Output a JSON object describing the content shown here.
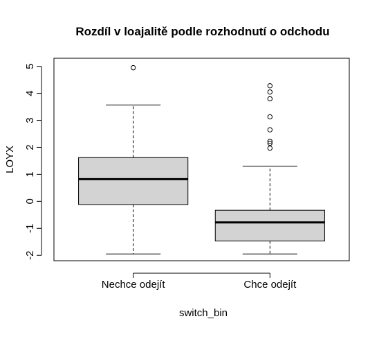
{
  "chart_data": {
    "type": "boxplot",
    "title": "Rozdíl v loajalitě podle rozhodnutí o odchodu",
    "xlabel": "switch_bin",
    "ylabel": "LOYX",
    "ylim": [
      -2.2,
      5.3
    ],
    "yticks": [
      -2,
      -1,
      0,
      1,
      2,
      3,
      4,
      5
    ],
    "categories": [
      "Nechce odejít",
      "Chce odejít"
    ],
    "boxes": [
      {
        "category": "Nechce odejít",
        "whisker_low": -1.95,
        "q1": -0.12,
        "median": 0.82,
        "q3": 1.62,
        "whisker_high": 3.57,
        "outliers": [
          4.95
        ]
      },
      {
        "category": "Chce odejít",
        "whisker_low": -1.95,
        "q1": -1.47,
        "median": -0.78,
        "q3": -0.33,
        "whisker_high": 1.3,
        "outliers": [
          1.97,
          2.15,
          2.22,
          2.65,
          3.13,
          3.8,
          4.05,
          4.28
        ]
      }
    ],
    "colors": {
      "box_fill": "#d3d3d3",
      "stroke": "#000000"
    },
    "grid": false
  }
}
